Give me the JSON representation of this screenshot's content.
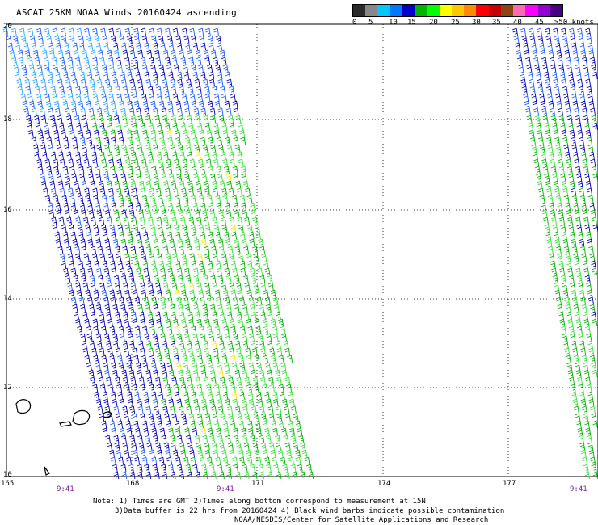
{
  "title": "ASCAT 25KM NOAA Winds 20160424 ascending",
  "legend": {
    "labels": [
      "0",
      "5",
      "10",
      "15",
      "20",
      "25",
      "30",
      "35",
      "40",
      "45",
      ">50 knots"
    ],
    "colors": [
      "#2b2b2b",
      "#888888",
      "#00c8ff",
      "#0078ff",
      "#0000c8",
      "#00b400",
      "#00ff00",
      "#ffff00",
      "#ffc800",
      "#ff8c00",
      "#ff0000",
      "#c80000",
      "#8b4513",
      "#ff69b4",
      "#ff00ff",
      "#9400d3",
      "#4b0082"
    ]
  },
  "map": {
    "lon_labels": [
      "165",
      "168",
      "171",
      "174",
      "177"
    ],
    "lat_labels": [
      "20",
      "18",
      "16",
      "14",
      "12",
      "10"
    ],
    "time_labels": [
      "9:41",
      "9:41",
      "9:41"
    ],
    "time_label_color": "#7a1fa2",
    "grid_color": "#000000"
  },
  "notes": {
    "line1": "Note: 1) Times are GMT 2)Times along bottom correspond to measurement at 15N",
    "line2": "3)Data buffer is 22 hrs from 20160424 4) Black wind barbs indicate possible contamination",
    "line3": "NOAA/NESDIS/Center for Satellite Applications and Research"
  },
  "swath_colors": {
    "dark_blue": "#0000b4",
    "blue": "#1a5cff",
    "light_blue": "#2aa6ff",
    "green": "#00b000",
    "bright_green": "#38e038",
    "yellow": "#ffe600"
  }
}
